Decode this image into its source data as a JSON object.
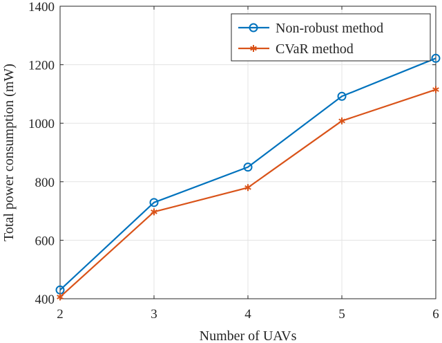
{
  "chart_data": {
    "type": "line",
    "title": "",
    "xlabel": "Number of UAVs",
    "ylabel": "Total power consumption (mW)",
    "x": [
      2,
      3,
      4,
      5,
      6
    ],
    "xlim": [
      2,
      6
    ],
    "ylim": [
      400,
      1400
    ],
    "xticks": [
      2,
      3,
      4,
      5,
      6
    ],
    "yticks": [
      400,
      600,
      800,
      1000,
      1200,
      1400
    ],
    "grid": true,
    "legend_position": "top-right",
    "series": [
      {
        "name": "Non-robust method",
        "marker": "circle",
        "color": "#0072bd",
        "values": [
          430,
          729,
          850,
          1092,
          1222
        ]
      },
      {
        "name": "CVaR method",
        "marker": "asterisk",
        "color": "#d95319",
        "values": [
          406,
          697,
          780,
          1008,
          1115
        ]
      }
    ]
  }
}
